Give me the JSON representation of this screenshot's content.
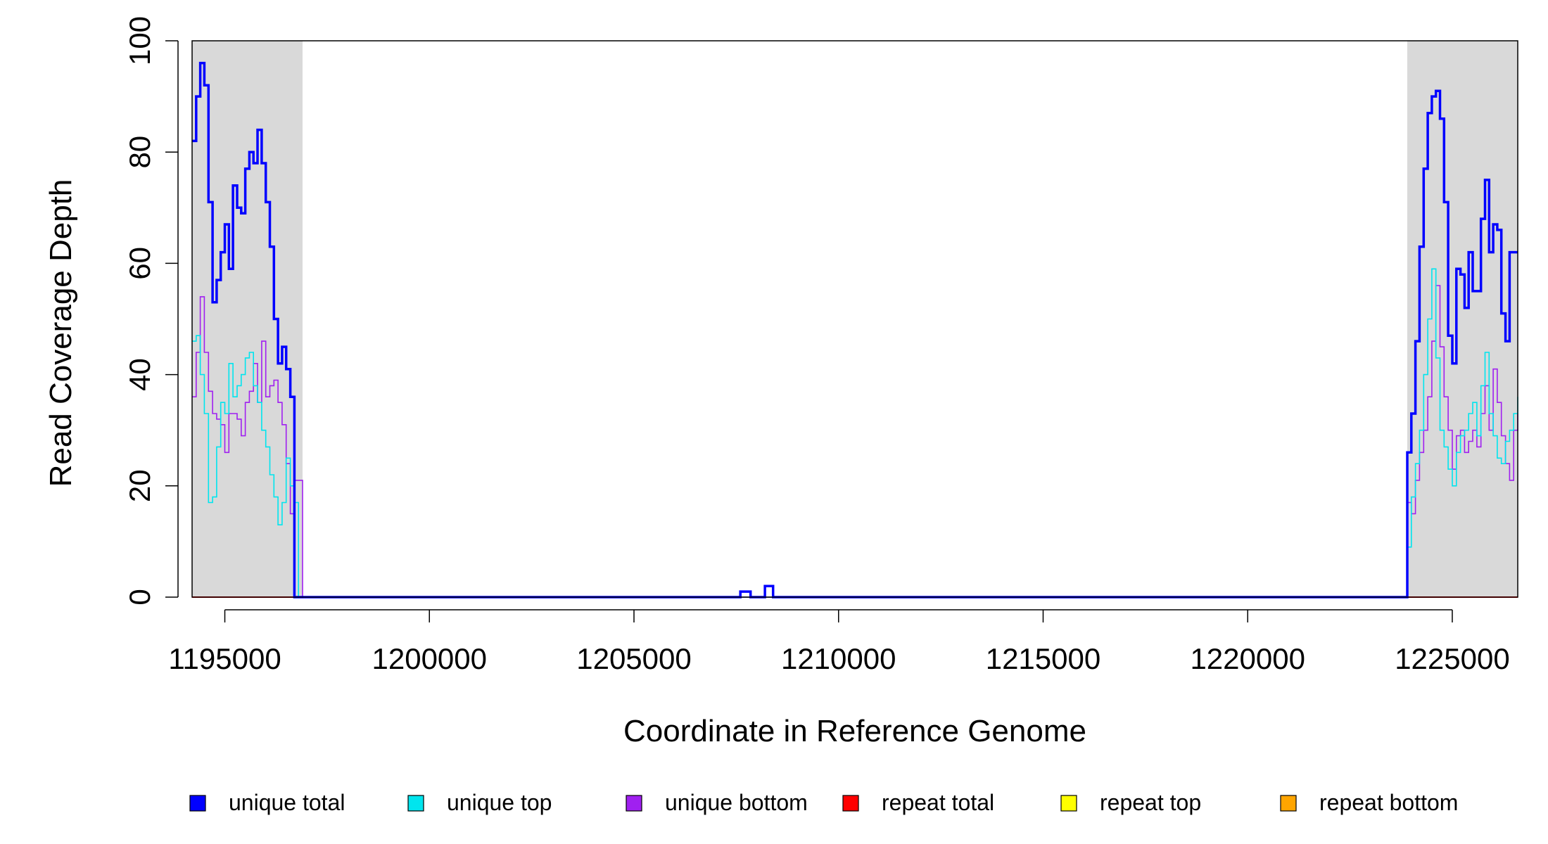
{
  "chart_data": {
    "type": "line",
    "title": "",
    "xlabel": "Coordinate in Reference Genome",
    "ylabel": "Read Coverage Depth",
    "xlim": [
      1194200,
      1226600
    ],
    "ylim": [
      0,
      100
    ],
    "x_ticks": [
      1195000,
      1200000,
      1205000,
      1210000,
      1215000,
      1220000,
      1225000
    ],
    "x_tick_labels": [
      "1195000",
      "1200000",
      "1205000",
      "1210000",
      "1215000",
      "1220000",
      "1225000"
    ],
    "y_ticks": [
      0,
      20,
      40,
      60,
      80,
      100
    ],
    "y_tick_labels": [
      "0",
      "20",
      "40",
      "60",
      "80",
      "100"
    ],
    "shaded_regions": [
      {
        "x_start": 1194200,
        "x_end": 1196900,
        "color": "#d9d9d9"
      },
      {
        "x_start": 1223900,
        "x_end": 1226600,
        "color": "#d9d9d9"
      }
    ],
    "grid": false,
    "legend_position": "bottom",
    "legend": [
      {
        "label": "unique total",
        "color": "#0000ff"
      },
      {
        "label": "unique top",
        "color": "#00e5ee"
      },
      {
        "label": "unique bottom",
        "color": "#a020f0"
      },
      {
        "label": "repeat total",
        "color": "#ff0000"
      },
      {
        "label": "repeat top",
        "color": "#ffff00"
      },
      {
        "label": "repeat bottom",
        "color": "#ffa500"
      }
    ],
    "series": [
      {
        "name": "unique total",
        "color": "#0000ff",
        "x": [
          1194200,
          1194300,
          1194400,
          1194500,
          1194600,
          1194700,
          1194800,
          1194900,
          1195000,
          1195100,
          1195200,
          1195300,
          1195400,
          1195500,
          1195600,
          1195700,
          1195800,
          1195900,
          1196000,
          1196100,
          1196200,
          1196300,
          1196400,
          1196500,
          1196600,
          1196700,
          1196800,
          1196900,
          1196950,
          1207600,
          1207800,
          1207850,
          1208200,
          1208350,
          1208400,
          1223900,
          1224000,
          1224100,
          1224200,
          1224300,
          1224400,
          1224500,
          1224600,
          1224700,
          1224800,
          1224900,
          1225000,
          1225100,
          1225200,
          1225300,
          1225400,
          1225500,
          1225600,
          1225700,
          1225800,
          1225900,
          1226000,
          1226100,
          1226200,
          1226300,
          1226400,
          1226500,
          1226600
        ],
        "y": [
          82,
          90,
          96,
          92,
          71,
          53,
          57,
          62,
          67,
          59,
          74,
          70,
          69,
          77,
          80,
          78,
          84,
          78,
          71,
          63,
          50,
          42,
          45,
          41,
          36,
          0,
          0,
          0,
          0,
          1,
          1,
          0,
          2,
          2,
          0,
          26,
          33,
          46,
          63,
          77,
          87,
          90,
          91,
          86,
          71,
          47,
          42,
          59,
          58,
          52,
          62,
          55,
          55,
          68,
          75,
          62,
          67,
          66,
          51,
          46,
          62,
          62,
          62
        ]
      },
      {
        "name": "unique top",
        "color": "#00e5ee",
        "x": [
          1194200,
          1194300,
          1194400,
          1194500,
          1194600,
          1194700,
          1194800,
          1194900,
          1195000,
          1195100,
          1195200,
          1195300,
          1195400,
          1195500,
          1195600,
          1195700,
          1195800,
          1195900,
          1196000,
          1196100,
          1196200,
          1196300,
          1196400,
          1196500,
          1196600,
          1196700,
          1196800,
          1196900,
          1196950,
          1223900,
          1224000,
          1224100,
          1224200,
          1224300,
          1224400,
          1224500,
          1224600,
          1224700,
          1224800,
          1224900,
          1225000,
          1225100,
          1225200,
          1225300,
          1225400,
          1225500,
          1225600,
          1225700,
          1225800,
          1225900,
          1226000,
          1226100,
          1226200,
          1226300,
          1226400,
          1226500,
          1226600
        ],
        "y": [
          46,
          47,
          40,
          33,
          17,
          18,
          27,
          35,
          33,
          42,
          36,
          38,
          40,
          43,
          44,
          38,
          35,
          30,
          27,
          22,
          18,
          13,
          17,
          25,
          20,
          17,
          0,
          0,
          0,
          9,
          18,
          24,
          30,
          40,
          50,
          59,
          43,
          30,
          27,
          23,
          20,
          26,
          29,
          30,
          33,
          35,
          29,
          38,
          44,
          33,
          29,
          25,
          24,
          28,
          30,
          33,
          36
        ]
      },
      {
        "name": "unique bottom",
        "color": "#a020f0",
        "x": [
          1194200,
          1194300,
          1194400,
          1194500,
          1194600,
          1194700,
          1194800,
          1194900,
          1195000,
          1195100,
          1195200,
          1195300,
          1195400,
          1195500,
          1195600,
          1195700,
          1195800,
          1195900,
          1196000,
          1196100,
          1196200,
          1196300,
          1196400,
          1196500,
          1196600,
          1196700,
          1196800,
          1196900,
          1196950,
          1223900,
          1224000,
          1224100,
          1224200,
          1224300,
          1224400,
          1224500,
          1224600,
          1224700,
          1224800,
          1224900,
          1225000,
          1225100,
          1225200,
          1225300,
          1225400,
          1225500,
          1225600,
          1225700,
          1225800,
          1225900,
          1226000,
          1226100,
          1226200,
          1226300,
          1226400,
          1226500,
          1226600
        ],
        "y": [
          36,
          44,
          54,
          44,
          37,
          33,
          32,
          31,
          26,
          33,
          33,
          32,
          29,
          35,
          37,
          42,
          35,
          46,
          36,
          38,
          39,
          35,
          31,
          24,
          15,
          21,
          21,
          0,
          0,
          17,
          15,
          21,
          26,
          30,
          36,
          46,
          56,
          45,
          36,
          30,
          23,
          29,
          30,
          26,
          28,
          30,
          27,
          33,
          38,
          30,
          41,
          35,
          29,
          24,
          21,
          30,
          33
        ]
      },
      {
        "name": "repeat total",
        "color": "#ff0000",
        "x": [
          1194200,
          1226600
        ],
        "y": [
          0,
          0
        ]
      },
      {
        "name": "repeat top",
        "color": "#ffff00",
        "x": [
          1194200,
          1226600
        ],
        "y": [
          0,
          0
        ]
      },
      {
        "name": "repeat bottom",
        "color": "#ffa500",
        "x": [
          1194200,
          1226600
        ],
        "y": [
          0,
          0
        ]
      }
    ]
  }
}
